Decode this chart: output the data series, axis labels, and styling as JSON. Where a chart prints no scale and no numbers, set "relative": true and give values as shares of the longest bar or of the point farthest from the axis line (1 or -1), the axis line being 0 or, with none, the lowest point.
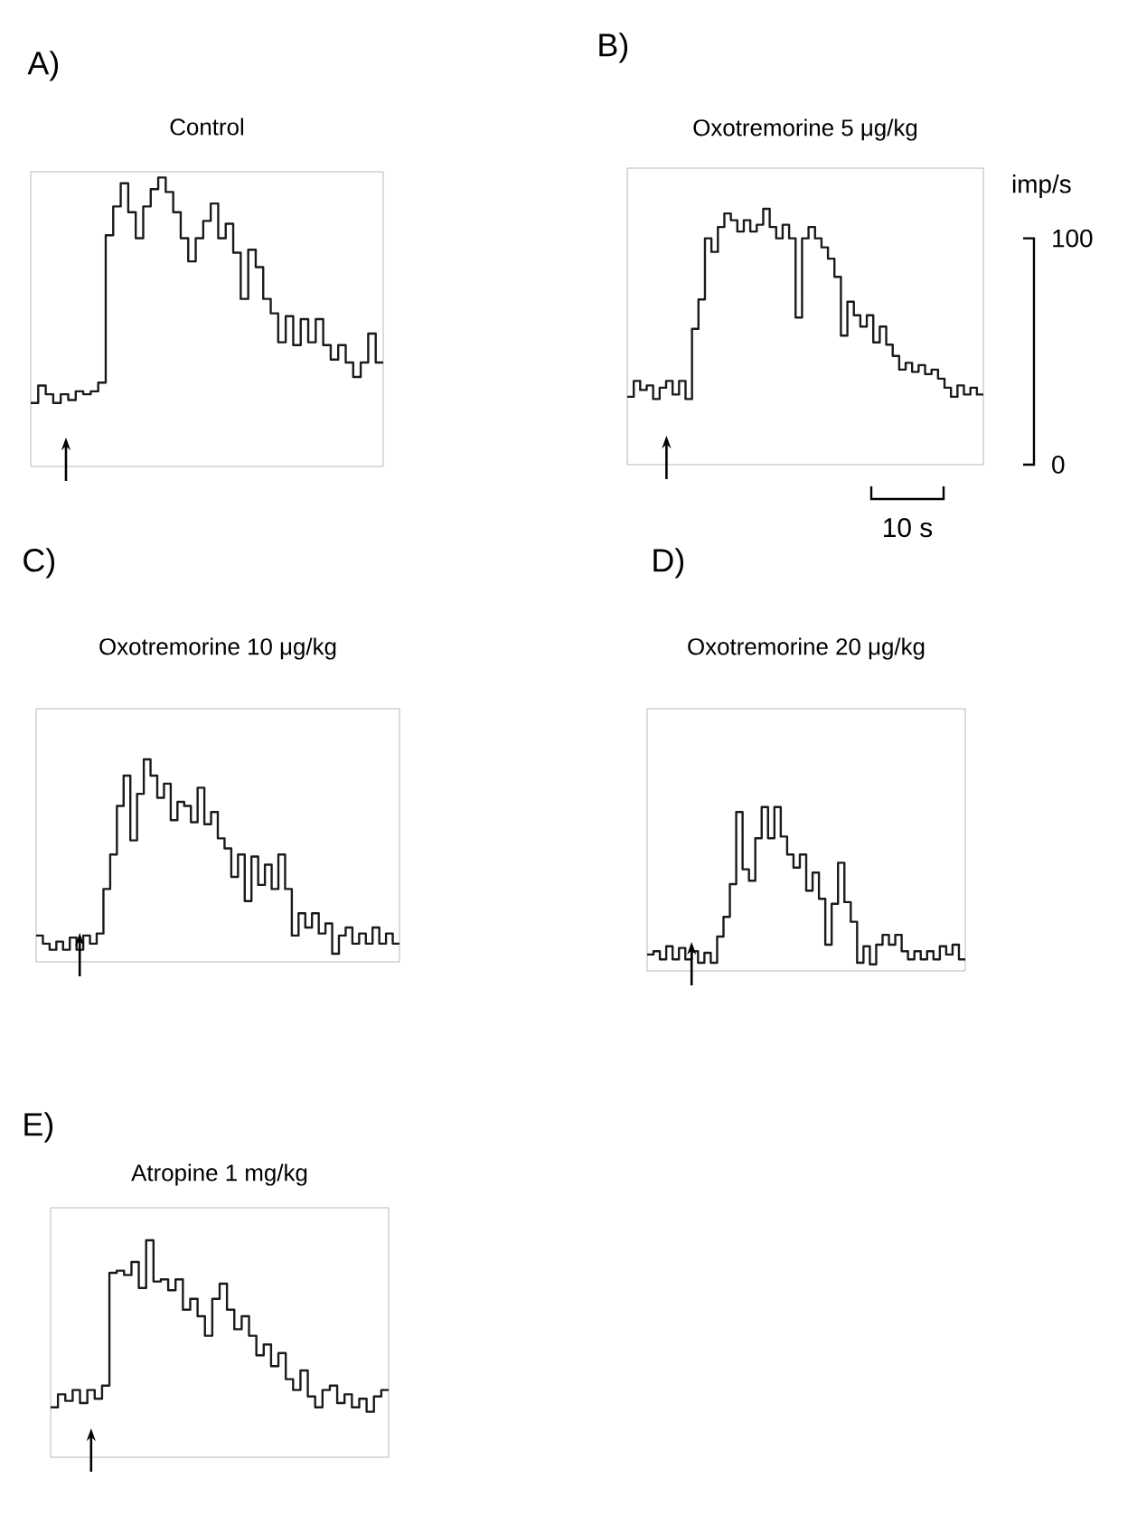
{
  "chart_data": [
    {
      "type": "step",
      "title": "A)",
      "subtitle": "Control",
      "color": "#1a1a1a",
      "relative": true,
      "tick_labels": false,
      "categories": [
        null,
        null,
        null,
        null,
        null,
        null,
        null,
        null,
        null,
        null,
        null,
        null,
        null,
        null,
        null,
        null,
        null,
        null,
        null,
        null,
        null,
        null,
        null,
        null,
        null,
        null,
        null,
        null,
        null,
        null,
        null,
        null,
        null,
        null,
        null,
        null,
        null,
        null,
        null,
        null,
        null,
        null,
        null,
        null,
        null,
        null,
        null
      ],
      "values": [
        0.22,
        0.28,
        0.25,
        0.22,
        0.25,
        0.23,
        0.26,
        0.25,
        0.26,
        0.29,
        0.8,
        0.9,
        0.98,
        0.88,
        0.79,
        0.9,
        0.96,
        1,
        0.95,
        0.88,
        0.79,
        0.71,
        0.79,
        0.85,
        0.91,
        0.79,
        0.84,
        0.74,
        0.58,
        0.75,
        0.69,
        0.58,
        0.53,
        0.43,
        0.52,
        0.42,
        0.51,
        0.43,
        0.51,
        0.42,
        0.37,
        0.42,
        0.36,
        0.31,
        0.36,
        0.46,
        0.36
      ]
    },
    {
      "type": "step",
      "title": "B)",
      "subtitle": "Oxotremorine 5 μg/kg",
      "ylabel": "imp/s",
      "color": "#1a1a1a",
      "ylim": [
        0,
        131
      ],
      "yticks": [
        0,
        100
      ],
      "tick_labels": "y",
      "categories": [
        null,
        null,
        null,
        null,
        null,
        null,
        null,
        null,
        null,
        null,
        null,
        null,
        null,
        null,
        null,
        null,
        null,
        null,
        null,
        null,
        null,
        null,
        null,
        null,
        null,
        null,
        null,
        null,
        null,
        null,
        null,
        null,
        null,
        null,
        null,
        null,
        null,
        null,
        null,
        null,
        null,
        null,
        null,
        null,
        null,
        null,
        null,
        null,
        null,
        null,
        null,
        null,
        null,
        null,
        null
      ],
      "values": [
        30,
        37,
        33,
        35,
        29,
        34,
        37,
        31,
        37,
        29,
        60,
        73,
        100,
        94,
        105,
        111,
        108,
        103,
        108,
        103,
        106,
        113,
        105,
        100,
        106,
        100,
        65,
        100,
        105,
        100,
        96,
        91,
        83,
        57,
        72,
        66,
        61,
        66,
        54,
        61,
        53,
        48,
        42,
        45,
        41,
        44,
        40,
        42,
        38,
        34,
        30,
        35,
        31,
        34,
        31
      ],
      "annotations": [
        "10 s"
      ]
    },
    {
      "type": "step",
      "title": "C)",
      "subtitle": "Oxotremorine 10 μg/kg",
      "color": "#1a1a1a",
      "relative": true,
      "tick_labels": false,
      "categories": [
        null,
        null,
        null,
        null,
        null,
        null,
        null,
        null,
        null,
        null,
        null,
        null,
        null,
        null,
        null,
        null,
        null,
        null,
        null,
        null,
        null,
        null,
        null,
        null,
        null,
        null,
        null,
        null,
        null,
        null,
        null,
        null,
        null,
        null,
        null,
        null,
        null,
        null,
        null,
        null,
        null,
        null,
        null,
        null,
        null,
        null,
        null,
        null,
        null,
        null,
        null,
        null,
        null,
        null
      ],
      "values": [
        0.13,
        0.09,
        0.06,
        0.1,
        0.06,
        0.12,
        0.06,
        0.13,
        0.09,
        0.14,
        0.36,
        0.53,
        0.77,
        0.92,
        0.6,
        0.83,
        1,
        0.92,
        0.81,
        0.88,
        0.7,
        0.79,
        0.77,
        0.69,
        0.86,
        0.68,
        0.74,
        0.61,
        0.56,
        0.42,
        0.53,
        0.3,
        0.52,
        0.38,
        0.48,
        0.36,
        0.53,
        0.36,
        0.13,
        0.24,
        0.17,
        0.24,
        0.14,
        0.19,
        0.04,
        0.13,
        0.17,
        0.09,
        0.14,
        0.09,
        0.17,
        0.09,
        0.14,
        0.09
      ]
    },
    {
      "type": "step",
      "title": "D)",
      "subtitle": "Oxotremorine 20 μg/kg",
      "color": "#1a1a1a",
      "relative": true,
      "tick_labels": false,
      "categories": [
        null,
        null,
        null,
        null,
        null,
        null,
        null,
        null,
        null,
        null,
        null,
        null,
        null,
        null,
        null,
        null,
        null,
        null,
        null,
        null,
        null,
        null,
        null,
        null,
        null,
        null,
        null,
        null,
        null,
        null,
        null,
        null,
        null,
        null,
        null,
        null,
        null,
        null,
        null,
        null,
        null,
        null,
        null,
        null,
        null,
        null,
        null,
        null,
        null,
        null
      ],
      "values": [
        0.1,
        0.12,
        0.07,
        0.15,
        0.07,
        0.14,
        0.07,
        0.12,
        0.05,
        0.11,
        0.05,
        0.21,
        0.33,
        0.53,
        0.97,
        0.62,
        0.55,
        0.81,
        1,
        0.81,
        1,
        0.82,
        0.71,
        0.63,
        0.71,
        0.49,
        0.6,
        0.44,
        0.16,
        0.41,
        0.66,
        0.42,
        0.3,
        0.05,
        0.15,
        0.04,
        0.16,
        0.22,
        0.16,
        0.22,
        0.12,
        0.07,
        0.12,
        0.07,
        0.12,
        0.07,
        0.15,
        0.1,
        0.16,
        0.07
      ]
    },
    {
      "type": "step",
      "title": "E)",
      "subtitle": "Atropine 1 mg/kg",
      "color": "#1a1a1a",
      "relative": true,
      "tick_labels": false,
      "categories": [
        null,
        null,
        null,
        null,
        null,
        null,
        null,
        null,
        null,
        null,
        null,
        null,
        null,
        null,
        null,
        null,
        null,
        null,
        null,
        null,
        null,
        null,
        null,
        null,
        null,
        null,
        null,
        null,
        null,
        null,
        null,
        null,
        null,
        null,
        null,
        null,
        null,
        null,
        null,
        null,
        null,
        null,
        null,
        null,
        null,
        null
      ],
      "values": [
        0.23,
        0.29,
        0.26,
        0.31,
        0.25,
        0.31,
        0.27,
        0.33,
        0.85,
        0.86,
        0.84,
        0.9,
        0.78,
        1,
        0.81,
        0.82,
        0.77,
        0.82,
        0.68,
        0.73,
        0.65,
        0.56,
        0.73,
        0.8,
        0.68,
        0.59,
        0.65,
        0.56,
        0.47,
        0.52,
        0.42,
        0.48,
        0.36,
        0.31,
        0.4,
        0.28,
        0.23,
        0.31,
        0.33,
        0.25,
        0.29,
        0.23,
        0.27,
        0.21,
        0.28,
        0.31
      ]
    }
  ]
}
